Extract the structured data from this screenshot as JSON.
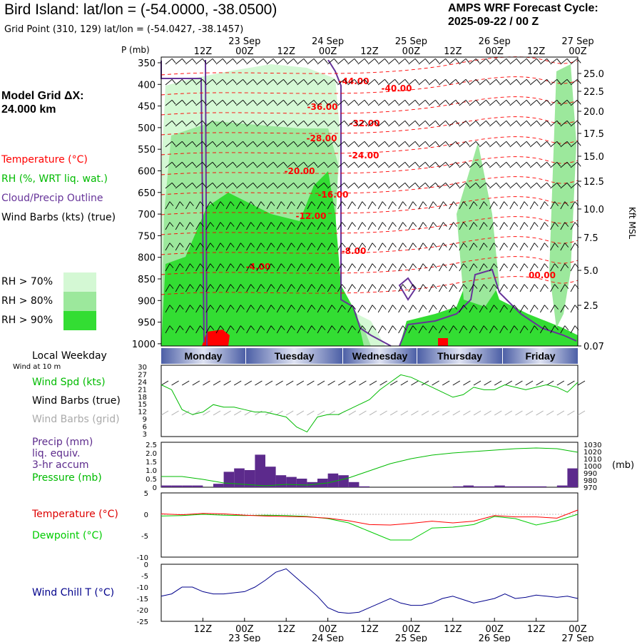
{
  "header": {
    "title": "Bird Island:  lat/lon = (-54.0000, -38.0500)",
    "subtitle": "Grid Point (310, 129) lat/lon = (-54.0427, -38.1457)",
    "cycle_line1": "AMPS WRF Forecast Cycle:",
    "cycle_line2": "2025-09-22 / 00  Z"
  },
  "side_labels": {
    "model_grid": "Model Grid ΔX:",
    "grid_km": " 24.000 km",
    "temperature": "Temperature (°C)",
    "rh": "RH (%, WRT liq. wat.)",
    "cloud": "Cloud/Precip Outline",
    "wind": "Wind Barbs (kts) (true)",
    "rh70": "RH > 70%",
    "rh80": "RH > 80%",
    "rh90": "RH > 90%",
    "local_weekday": "Local Weekday",
    "wind_10m": "Wind at 10 m",
    "wind_spd": "Wind Spd (kts)",
    "barbs_true": "Wind Barbs (true)",
    "barbs_grid": "Wind Barbs (grid)",
    "precip": "Precip (mm)",
    "liq": "liq. equiv.",
    "accum": "3-hr accum",
    "pressure": "Pressure (mb)",
    "temp2": "Temperature (°C)",
    "dewpoint": "Dewpoint (°C)",
    "windchill": "Wind Chill T (°C)"
  },
  "colors": {
    "rh70": "#d4f8d4",
    "rh80": "#9ce89c",
    "rh90": "#33dd33",
    "temp": "#ff0000",
    "cloud": "#663399",
    "wind_spd": "#00bb00",
    "precip": "#5c2a8c",
    "pressure": "#00bb00",
    "dewpoint": "#00cc00",
    "windchill": "#00008b",
    "grid_barbs": "#aaaaaa"
  },
  "time_axis": {
    "top_ticks": [
      "12Z",
      "00Z",
      "12Z",
      "00Z",
      "12Z",
      "00Z",
      "12Z",
      "00Z",
      "12Z",
      "00Z"
    ],
    "dates": [
      "23 Sep",
      "24 Sep",
      "25 Sep",
      "26 Sep",
      "27 Sep"
    ],
    "weekdays": [
      "Monday",
      "Tuesday",
      "Wednesday",
      "Thursday",
      "Friday"
    ]
  },
  "chart_data": [
    {
      "type": "heatmap",
      "ylabel": "P (mb)",
      "pressure_ticks": [
        "350",
        "400",
        "450",
        "500",
        "550",
        "600",
        "650",
        "700",
        "750",
        "800",
        "850",
        "900",
        "950",
        "1000"
      ],
      "height_ticks": [
        "25.0",
        "22.5",
        "20.0",
        "17.5",
        "15.0",
        "12.5",
        "10.0",
        "7.5",
        "5.0",
        "2.5",
        "0.07"
      ],
      "height_unit": "Kft MSL",
      "temperature_labels": [
        "-44.00",
        "-40.00",
        "-36.00",
        "-32.00",
        "-28.00",
        "-24.00",
        "-20.00",
        "-16.00",
        "-12.00",
        "-8.00",
        "-4.00",
        "00.00"
      ]
    },
    {
      "type": "line",
      "name": "wind speed",
      "ylim": [
        3,
        30
      ],
      "yticks": [
        "30",
        "27",
        "24",
        "21",
        "18",
        "15",
        "12",
        "9",
        "6",
        "3"
      ],
      "x_hours": [
        0,
        3,
        6,
        9,
        12,
        15,
        18,
        21,
        24,
        27,
        30,
        33,
        36,
        39,
        42,
        45,
        48,
        51,
        54,
        57,
        60,
        63,
        66,
        69,
        72,
        75,
        78,
        81,
        84,
        87,
        90,
        93,
        96,
        99,
        102,
        105,
        108,
        111,
        114,
        117,
        120
      ],
      "series": [
        {
          "values": [
            23,
            21,
            13,
            11,
            12,
            15,
            14,
            14,
            13,
            12,
            12,
            11,
            10,
            6,
            4,
            10,
            11,
            11,
            13,
            15,
            17,
            21,
            24,
            27,
            26,
            24,
            22,
            20,
            18,
            19,
            22,
            21,
            21,
            23,
            22,
            21,
            22,
            23,
            22,
            20,
            24
          ]
        }
      ]
    },
    {
      "type": "bar",
      "ylim_left": [
        0,
        2.5
      ],
      "yticks_left": [
        "2.5",
        "2.0",
        "1.5",
        "1.0",
        "0.5",
        "0"
      ],
      "ylim_right": [
        970,
        1030
      ],
      "yticks_right": [
        "1030",
        "1020",
        "1010",
        "1000",
        "990",
        "980",
        "970"
      ],
      "right_unit": "(mb)",
      "x_hours": [
        1.5,
        4.5,
        7.5,
        10.5,
        13.5,
        16.5,
        19.5,
        22.5,
        25.5,
        28.5,
        31.5,
        34.5,
        37.5,
        40.5,
        43.5,
        46.5,
        49.5,
        52.5,
        55.5,
        58.5,
        61.5,
        64.5,
        67.5,
        70.5,
        73.5,
        76.5,
        79.5,
        82.5,
        85.5,
        88.5,
        91.5,
        94.5,
        97.5,
        100.5,
        103.5,
        106.5,
        109.5,
        112.5,
        115.5,
        118.5
      ],
      "precip": [
        0.1,
        0.1,
        0.1,
        0.1,
        0.0,
        0.2,
        0.9,
        1.1,
        1.0,
        1.9,
        1.2,
        0.7,
        0.6,
        0.5,
        0.3,
        0.5,
        0.8,
        0.7,
        0.3,
        0.05,
        0.0,
        0.0,
        0.0,
        0.0,
        0.0,
        0.0,
        0.0,
        0.0,
        0.05,
        0.1,
        0.05,
        0.05,
        0.1,
        0.05,
        0.05,
        0.05,
        0.05,
        0.0,
        0.1,
        1.1
      ],
      "pressure": {
        "x": [
          0,
          6,
          12,
          18,
          24,
          30,
          36,
          42,
          48,
          54,
          60,
          66,
          72,
          78,
          84,
          90,
          96,
          102,
          108,
          114,
          120
        ],
        "values": [
          985,
          985,
          981,
          976,
          974,
          972,
          974,
          973,
          976,
          983,
          993,
          1003,
          1010,
          1015,
          1018,
          1020,
          1022,
          1024,
          1025,
          1024,
          1019
        ]
      }
    },
    {
      "type": "line",
      "ylim": [
        -10,
        5
      ],
      "yticks": [
        "5",
        "0",
        "-5",
        "-10"
      ],
      "x_hours": [
        0,
        6,
        12,
        18,
        24,
        30,
        36,
        42,
        48,
        54,
        60,
        66,
        72,
        78,
        84,
        90,
        96,
        102,
        108,
        114,
        120
      ],
      "series": [
        {
          "name": "Temperature (°C)",
          "values": [
            0.1,
            -0.1,
            0.2,
            0.1,
            -0.2,
            -0.4,
            -0.5,
            -0.6,
            -0.9,
            -1.5,
            -2.4,
            -2.5,
            -2.1,
            -1.6,
            -2.0,
            -1.6,
            -0.3,
            -0.6,
            -0.6,
            -0.9,
            1.0
          ]
        },
        {
          "name": "Dewpoint (°C)",
          "values": [
            -0.4,
            -0.3,
            0.0,
            -0.2,
            -0.3,
            -0.2,
            -0.3,
            -0.5,
            -1.0,
            -2.0,
            -4.0,
            -6.0,
            -6.0,
            -3.2,
            -3.0,
            -2.4,
            -0.5,
            -1.0,
            -2.5,
            -1.5,
            0.0
          ]
        }
      ]
    },
    {
      "type": "line",
      "ylim": [
        -25,
        0
      ],
      "yticks": [
        "0",
        "-5",
        "-10",
        "-15",
        "-20",
        "-25"
      ],
      "x_hours": [
        0,
        3,
        6,
        9,
        12,
        15,
        18,
        21,
        24,
        27,
        30,
        33,
        36,
        39,
        42,
        45,
        48,
        51,
        54,
        57,
        60,
        63,
        66,
        69,
        72,
        75,
        78,
        81,
        84,
        87,
        90,
        93,
        96,
        99,
        102,
        105,
        108,
        111,
        114,
        117,
        120
      ],
      "series": [
        {
          "name": "Wind Chill T (°C)",
          "values": [
            -14,
            -13,
            -10,
            -10,
            -12,
            -13,
            -13,
            -12.5,
            -12,
            -10,
            -7,
            -3.5,
            -2,
            -6,
            -10,
            -14,
            -19,
            -21,
            -21.5,
            -21,
            -19,
            -17,
            -15,
            -17,
            -18,
            -18,
            -17,
            -15,
            -14,
            -15.5,
            -17,
            -16,
            -15,
            -13,
            -15,
            -14.5,
            -13.5,
            -14,
            -14.5,
            -14,
            -15
          ]
        }
      ]
    }
  ]
}
